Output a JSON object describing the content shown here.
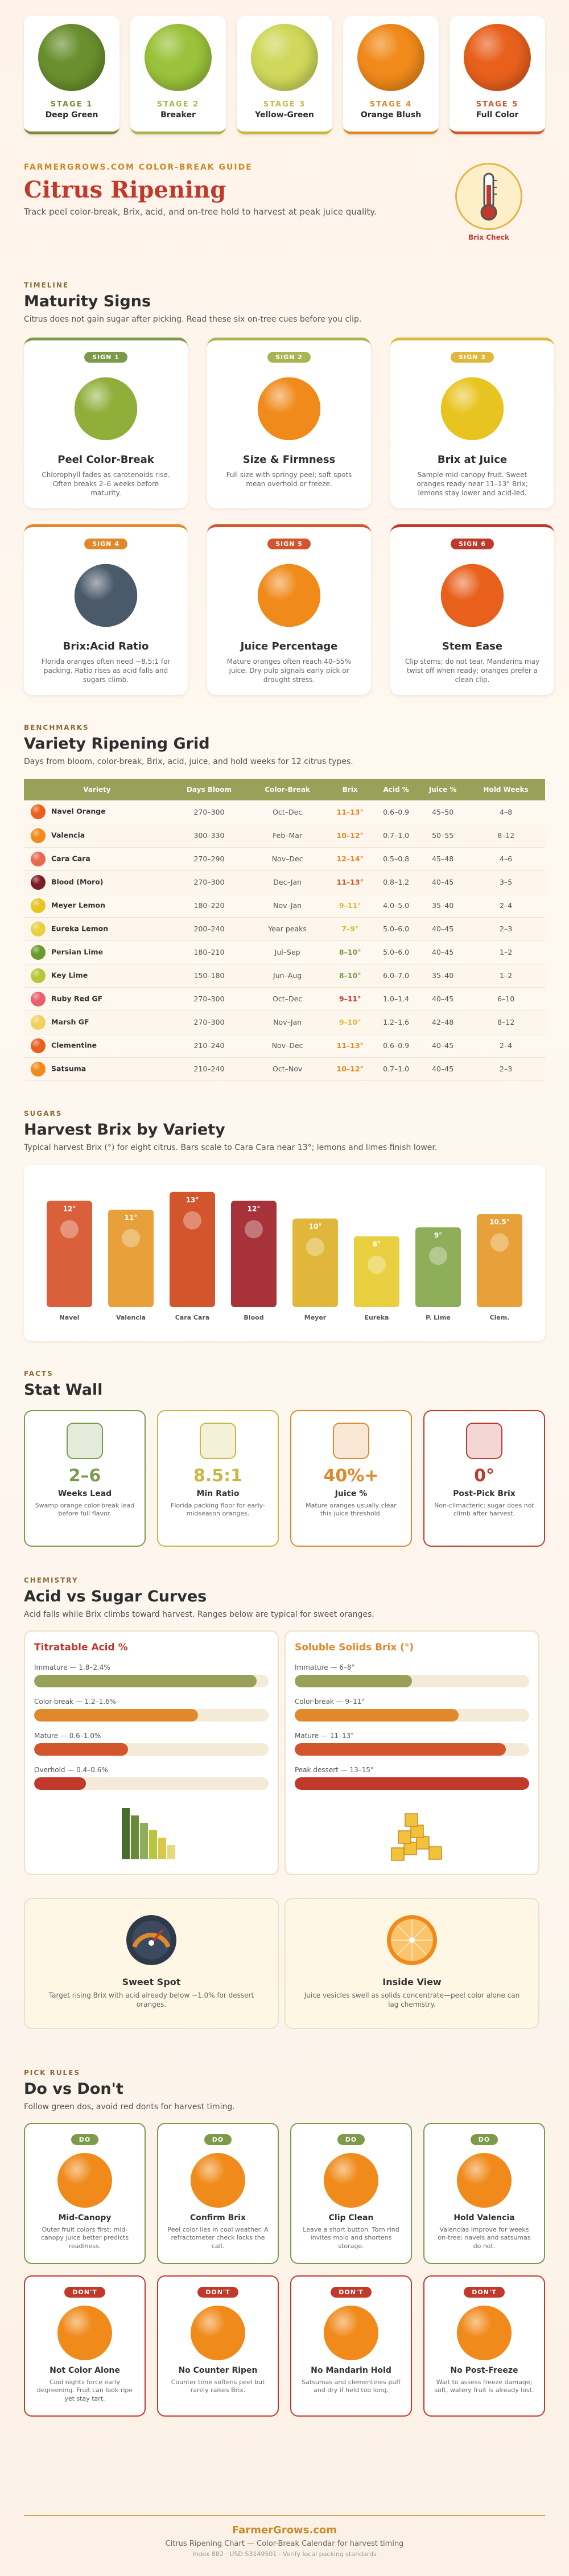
{
  "stages": [
    {
      "label": "STAGE 1",
      "name": "Deep Green",
      "color": "#6a8f2e",
      "accent": "#7c8a3a"
    },
    {
      "label": "STAGE 2",
      "name": "Breaker",
      "color": "#9ac23a",
      "accent": "#a9b553"
    },
    {
      "label": "STAGE 3",
      "name": "Yellow-Green",
      "color": "#cfd85a",
      "accent": "#c9b743"
    },
    {
      "label": "STAGE 4",
      "name": "Orange Blush",
      "color": "#f08a1a",
      "accent": "#e0892b"
    },
    {
      "label": "STAGE 5",
      "name": "Full Color",
      "color": "#e8601c",
      "accent": "#d2552c"
    }
  ],
  "hero": {
    "kicker": "FARMERGROWS.COM COLOR-BREAK GUIDE",
    "title": "Citrus Ripening",
    "subtitle": "Track peel color-break, Brix, acid, and on-tree hold to harvest at peak juice quality.",
    "badge_label": "Brix Check"
  },
  "signs": {
    "kicker": "TIMELINE",
    "title": "Maturity Signs",
    "subtitle": "Citrus does not gain sugar after picking. Read these six on-tree cues before you clip.",
    "items": [
      {
        "pill": "SIGN 1",
        "title": "Peel Color-Break",
        "desc": "Chlorophyll fades as carotenoids rise. Often breaks 2–6 weeks before maturity.",
        "pill_color": "#7c9a4a",
        "top": "#7c9a4a"
      },
      {
        "pill": "SIGN 2",
        "title": "Size & Firmness",
        "desc": "Full size with springy peel; soft spots mean overhold or freeze.",
        "pill_color": "#a9b553",
        "top": "#a9b553"
      },
      {
        "pill": "SIGN 3",
        "title": "Brix at Juice",
        "desc": "Sample mid-canopy fruit. Sweet oranges ready near 11–13° Brix; lemons stay lower and acid-led.",
        "pill_color": "#e0b73a",
        "top": "#e0b73a"
      },
      {
        "pill": "SIGN 4",
        "title": "Brix:Acid Ratio",
        "desc": "Florida oranges often need ~8.5:1 for packing. Ratio rises as acid falls and sugars climb.",
        "pill_color": "#e0892b",
        "top": "#e0892b"
      },
      {
        "pill": "SIGN 5",
        "title": "Juice Percentage",
        "desc": "Mature oranges often reach 40–55% juice. Dry pulp signals early pick or drought stress.",
        "pill_color": "#d2552c",
        "top": "#d2552c"
      },
      {
        "pill": "SIGN 6",
        "title": "Stem Ease",
        "desc": "Clip stems; do not tear. Mandarins may twist off when ready; oranges prefer a clean clip.",
        "pill_color": "#c0392b",
        "top": "#c0392b"
      }
    ]
  },
  "grid": {
    "kicker": "BENCHMARKS",
    "title": "Variety Ripening Grid",
    "subtitle": "Days from bloom, color-break, Brix, acid, juice, and hold weeks for 12 citrus types.",
    "headers": [
      "Variety",
      "Days Bloom",
      "Color-Break",
      "Brix",
      "Acid %",
      "Juice %",
      "Hold Weeks"
    ],
    "rows": [
      {
        "variety": "Navel Orange",
        "days": "270–300",
        "cb": "Oct–Dec",
        "brix": "11–13°",
        "acid": "0.6–0.9",
        "juice": "45–50",
        "hold": "4–8",
        "dot": "#e8601c",
        "bc": "#e0892b"
      },
      {
        "variety": "Valencia",
        "days": "300–330",
        "cb": "Feb–Mar",
        "brix": "10–12°",
        "acid": "0.7–1.0",
        "juice": "50–55",
        "hold": "8–12",
        "dot": "#f08a1a",
        "bc": "#e0892b"
      },
      {
        "variety": "Cara Cara",
        "days": "270–290",
        "cb": "Nov–Dec",
        "brix": "12–14°",
        "acid": "0.5–0.8",
        "juice": "45–48",
        "hold": "4–6",
        "dot": "#e86a50",
        "bc": "#e0892b"
      },
      {
        "variety": "Blood (Moro)",
        "days": "270–300",
        "cb": "Dec–Jan",
        "brix": "11–13°",
        "acid": "0.8–1.2",
        "juice": "40–45",
        "hold": "3–5",
        "dot": "#7a1e24",
        "bc": "#d2552c"
      },
      {
        "variety": "Meyer Lemon",
        "days": "180–220",
        "cb": "Nov–Jan",
        "brix": "9–11°",
        "acid": "4.0–5.0",
        "juice": "35–40",
        "hold": "2–4",
        "dot": "#e8c420",
        "bc": "#e0b73a"
      },
      {
        "variety": "Eureka Lemon",
        "days": "200–240",
        "cb": "Year peaks",
        "brix": "7–9°",
        "acid": "5.0–6.0",
        "juice": "40–45",
        "hold": "2–3",
        "dot": "#e8d040",
        "bc": "#e0b73a"
      },
      {
        "variety": "Persian Lime",
        "days": "180–210",
        "cb": "Jul–Sep",
        "brix": "8–10°",
        "acid": "5.0–6.0",
        "juice": "40–45",
        "hold": "1–2",
        "dot": "#6a9a2e",
        "bc": "#7c9a4a"
      },
      {
        "variety": "Key Lime",
        "days": "150–180",
        "cb": "Jun–Aug",
        "brix": "8–10°",
        "acid": "6.0–7.0",
        "juice": "35–40",
        "hold": "1–2",
        "dot": "#b6c83a",
        "bc": "#7c9a4a"
      },
      {
        "variety": "Ruby Red GF",
        "days": "270–300",
        "cb": "Oct–Dec",
        "brix": "9–11°",
        "acid": "1.0–1.4",
        "juice": "40–45",
        "hold": "6–10",
        "dot": "#e8606a",
        "bc": "#c0392b"
      },
      {
        "variety": "Marsh GF",
        "days": "270–300",
        "cb": "Nov–Jan",
        "brix": "9–10°",
        "acid": "1.2–1.6",
        "juice": "42–48",
        "hold": "8–12",
        "dot": "#f0d060",
        "bc": "#e0b73a"
      },
      {
        "variety": "Clementine",
        "days": "210–240",
        "cb": "Nov–Dec",
        "brix": "11–13°",
        "acid": "0.6–0.9",
        "juice": "40–45",
        "hold": "2–4",
        "dot": "#e8601c",
        "bc": "#e0892b"
      },
      {
        "variety": "Satsuma",
        "days": "210–240",
        "cb": "Oct–Nov",
        "brix": "10–12°",
        "acid": "0.7–1.0",
        "juice": "40–45",
        "hold": "2–3",
        "dot": "#f08a1a",
        "bc": "#e0892b"
      }
    ]
  },
  "brix": {
    "kicker": "SUGARS",
    "title": "Harvest Brix by Variety",
    "subtitle": "Typical harvest Brix (°) for eight citrus. Bars scale to Cara Cara near 13°; lemons and limes finish lower."
  },
  "chart_data": {
    "type": "bar",
    "categories": [
      "Navel",
      "Valencia",
      "Cara Cara",
      "Blood",
      "Meyer",
      "Eureka",
      "P. Lime",
      "Clem."
    ],
    "value_labels": [
      "12°",
      "11°",
      "13°",
      "12°",
      "10°",
      "8°",
      "9°",
      "10.5°"
    ],
    "values": [
      12,
      11,
      13,
      12,
      10,
      8,
      9,
      10.5
    ],
    "ylim": [
      0,
      13.5
    ],
    "colors": [
      "#d9603a",
      "#e8a13a",
      "#d2552c",
      "#a8323a",
      "#e0b73a",
      "#e8d040",
      "#8fae5a",
      "#e8a13a"
    ]
  },
  "stats": {
    "kicker": "FACTS",
    "title": "Stat Wall",
    "items": [
      {
        "big": "2–6",
        "title": "Weeks Lead",
        "desc": "Swamp orange color-break lead before full flavor.",
        "color": "#7c9a4a"
      },
      {
        "big": "8.5:1",
        "title": "Min Ratio",
        "desc": "Florida packing floor for early-midseason oranges.",
        "color": "#c9b743"
      },
      {
        "big": "40%+",
        "title": "Juice %",
        "desc": "Mature oranges usually clear this juice threshold.",
        "color": "#e0892b"
      },
      {
        "big": "0°",
        "title": "Post-Pick Brix",
        "desc": "Non-climacteric: sugar does not climb after harvest.",
        "color": "#c0392b"
      }
    ]
  },
  "curves": {
    "kicker": "CHEMISTRY",
    "title": "Acid vs Sugar Curves",
    "subtitle": "Acid falls while Brix climbs toward harvest. Ranges below are typical for sweet oranges.",
    "acid": {
      "title": "Titratable Acid %",
      "bars": [
        {
          "label": "Immature — 1.8–2.4%",
          "pct": 95,
          "color": "#98a05a"
        },
        {
          "label": "Color-break — 1.2–1.6%",
          "pct": 70,
          "color": "#e0892b"
        },
        {
          "label": "Mature — 0.6–1.0%",
          "pct": 40,
          "color": "#d2552c"
        },
        {
          "label": "Overhold — 0.4–0.6%",
          "pct": 22,
          "color": "#c0392b"
        }
      ]
    },
    "sugar": {
      "title": "Soluble Solids Brix (°)",
      "bars": [
        {
          "label": "Immature — 6–8°",
          "pct": 50,
          "color": "#98a05a"
        },
        {
          "label": "Color-break — 9–11°",
          "pct": 70,
          "color": "#e0892b"
        },
        {
          "label": "Mature — 11–13°",
          "pct": 90,
          "color": "#d2552c"
        },
        {
          "label": "Peak dessert — 13–15°",
          "pct": 100,
          "color": "#c0392b"
        }
      ]
    },
    "tips": [
      {
        "title": "Sweet Spot",
        "desc": "Target rising Brix with acid already below ~1.0% for dessert oranges."
      },
      {
        "title": "Inside View",
        "desc": "Juice vesicles swell as solids concentrate—peel color alone can lag chemistry."
      }
    ]
  },
  "rules": {
    "kicker": "PICK RULES",
    "title": "Do vs Don't",
    "subtitle": "Follow green dos, avoid red donts for harvest timing.",
    "do": [
      {
        "pill": "DO",
        "title": "Mid-Canopy",
        "desc": "Outer fruit colors first; mid-canopy juice better predicts readiness."
      },
      {
        "pill": "DO",
        "title": "Confirm Brix",
        "desc": "Peel color lies in cool weather. A refractometer check locks the call."
      },
      {
        "pill": "DO",
        "title": "Clip Clean",
        "desc": "Leave a short button. Torn rind invites mold and shortens storage."
      },
      {
        "pill": "DO",
        "title": "Hold Valencia",
        "desc": "Valencias improve for weeks on-tree; navels and satsumas do not."
      }
    ],
    "dont": [
      {
        "pill": "DON'T",
        "title": "Not Color Alone",
        "desc": "Cool nights force early degreening. Fruit can look ripe yet stay tart."
      },
      {
        "pill": "DON'T",
        "title": "No Counter Ripen",
        "desc": "Counter time softens peel but rarely raises Brix."
      },
      {
        "pill": "DON'T",
        "title": "No Mandarin Hold",
        "desc": "Satsumas and clementines puff and dry if held too long."
      },
      {
        "pill": "DON'T",
        "title": "No Post-Freeze",
        "desc": "Wait to assess freeze damage; soft, watery fruit is already lost."
      }
    ]
  },
  "footer": {
    "brand": "FarmerGrows.com",
    "line1": "Citrus Ripening Chart — Color-Break Calendar for harvest timing",
    "line2": "Index 882 · USD S3149501 · Verify local packing standards"
  }
}
